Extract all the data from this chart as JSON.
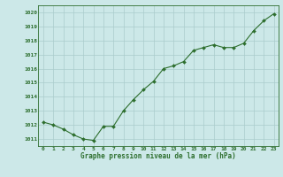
{
  "x": [
    0,
    1,
    2,
    3,
    4,
    5,
    6,
    7,
    8,
    9,
    10,
    11,
    12,
    13,
    14,
    15,
    16,
    17,
    18,
    19,
    20,
    21,
    22,
    23
  ],
  "y": [
    1012.2,
    1012.0,
    1011.7,
    1011.3,
    1011.0,
    1010.9,
    1011.9,
    1011.9,
    1013.0,
    1013.8,
    1014.5,
    1015.1,
    1016.0,
    1016.2,
    1016.5,
    1017.3,
    1017.5,
    1017.7,
    1017.5,
    1017.5,
    1017.8,
    1018.7,
    1019.4,
    1019.9
  ],
  "line_color": "#2d6e2d",
  "marker_color": "#2d6e2d",
  "bg_color": "#cce8e8",
  "grid_color": "#aacccc",
  "border_color": "#2d6e2d",
  "xlabel": "Graphe pression niveau de la mer (hPa)",
  "xlabel_color": "#2d6e2d",
  "tick_color": "#2d6e2d",
  "ylim_min": 1010.5,
  "ylim_max": 1020.5,
  "yticks": [
    1011,
    1012,
    1013,
    1014,
    1015,
    1016,
    1017,
    1018,
    1019,
    1020
  ],
  "xticks": [
    0,
    1,
    2,
    3,
    4,
    5,
    6,
    7,
    8,
    9,
    10,
    11,
    12,
    13,
    14,
    15,
    16,
    17,
    18,
    19,
    20,
    21,
    22,
    23
  ]
}
